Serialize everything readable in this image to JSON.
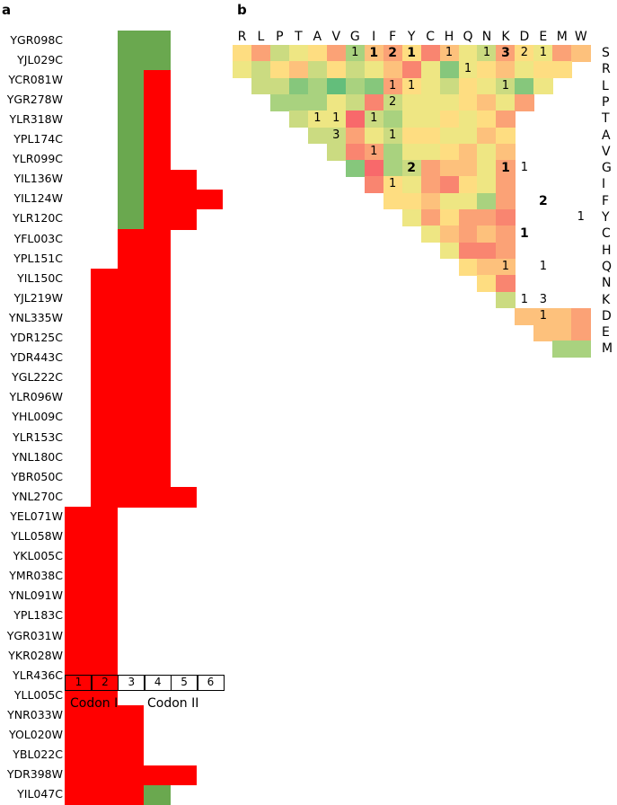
{
  "panel_a_label": "a",
  "panel_b_label": "b",
  "chart_data": [
    {
      "type": "heatmap",
      "panel": "a",
      "description_of_encoding": "each gene row has colored segments over codon positions 1-6",
      "columns": [
        "1",
        "2",
        "3",
        "4",
        "5",
        "6"
      ],
      "column_group_labels": [
        "Codon I",
        "Codon II"
      ],
      "colors": {
        "red": "#ff0000",
        "green": "#6aa84f"
      },
      "rows": [
        {
          "gene": "YGR098C",
          "segments": [
            {
              "from": 3,
              "to": 4,
              "color": "green"
            }
          ]
        },
        {
          "gene": "YJL029C",
          "segments": [
            {
              "from": 3,
              "to": 4,
              "color": "green"
            }
          ]
        },
        {
          "gene": "YCR081W",
          "segments": [
            {
              "from": 3,
              "to": 3,
              "color": "green"
            },
            {
              "from": 4,
              "to": 4,
              "color": "red"
            }
          ]
        },
        {
          "gene": "YGR278W",
          "segments": [
            {
              "from": 3,
              "to": 3,
              "color": "green"
            },
            {
              "from": 4,
              "to": 4,
              "color": "red"
            }
          ]
        },
        {
          "gene": "YLR318W",
          "segments": [
            {
              "from": 3,
              "to": 3,
              "color": "green"
            },
            {
              "from": 4,
              "to": 4,
              "color": "red"
            }
          ]
        },
        {
          "gene": "YPL174C",
          "segments": [
            {
              "from": 3,
              "to": 3,
              "color": "green"
            },
            {
              "from": 4,
              "to": 4,
              "color": "red"
            }
          ]
        },
        {
          "gene": "YLR099C",
          "segments": [
            {
              "from": 3,
              "to": 3,
              "color": "green"
            },
            {
              "from": 4,
              "to": 4,
              "color": "red"
            }
          ]
        },
        {
          "gene": "YIL136W",
          "segments": [
            {
              "from": 3,
              "to": 3,
              "color": "green"
            },
            {
              "from": 4,
              "to": 5,
              "color": "red"
            }
          ]
        },
        {
          "gene": "YIL124W",
          "segments": [
            {
              "from": 3,
              "to": 3,
              "color": "green"
            },
            {
              "from": 4,
              "to": 6,
              "color": "red"
            }
          ]
        },
        {
          "gene": "YLR120C",
          "segments": [
            {
              "from": 3,
              "to": 3,
              "color": "green"
            },
            {
              "from": 4,
              "to": 5,
              "color": "red"
            }
          ]
        },
        {
          "gene": "YFL003C",
          "segments": [
            {
              "from": 3,
              "to": 4,
              "color": "red"
            }
          ]
        },
        {
          "gene": "YPL151C",
          "segments": [
            {
              "from": 3,
              "to": 4,
              "color": "red"
            }
          ]
        },
        {
          "gene": "YIL150C",
          "segments": [
            {
              "from": 2,
              "to": 4,
              "color": "red"
            }
          ]
        },
        {
          "gene": "YJL219W",
          "segments": [
            {
              "from": 2,
              "to": 4,
              "color": "red"
            }
          ]
        },
        {
          "gene": "YNL335W",
          "segments": [
            {
              "from": 2,
              "to": 4,
              "color": "red"
            }
          ]
        },
        {
          "gene": "YDR125C",
          "segments": [
            {
              "from": 2,
              "to": 4,
              "color": "red"
            }
          ]
        },
        {
          "gene": "YDR443C",
          "segments": [
            {
              "from": 2,
              "to": 4,
              "color": "red"
            }
          ]
        },
        {
          "gene": "YGL222C",
          "segments": [
            {
              "from": 2,
              "to": 4,
              "color": "red"
            }
          ]
        },
        {
          "gene": "YLR096W",
          "segments": [
            {
              "from": 2,
              "to": 4,
              "color": "red"
            }
          ]
        },
        {
          "gene": "YHL009C",
          "segments": [
            {
              "from": 2,
              "to": 4,
              "color": "red"
            }
          ]
        },
        {
          "gene": "YLR153C",
          "segments": [
            {
              "from": 2,
              "to": 4,
              "color": "red"
            }
          ]
        },
        {
          "gene": "YNL180C",
          "segments": [
            {
              "from": 2,
              "to": 4,
              "color": "red"
            }
          ]
        },
        {
          "gene": "YBR050C",
          "segments": [
            {
              "from": 2,
              "to": 4,
              "color": "red"
            }
          ]
        },
        {
          "gene": "YNL270C",
          "segments": [
            {
              "from": 2,
              "to": 5,
              "color": "red"
            }
          ]
        },
        {
          "gene": "YEL071W",
          "segments": [
            {
              "from": 1,
              "to": 2,
              "color": "red"
            }
          ]
        },
        {
          "gene": "YLL058W",
          "segments": [
            {
              "from": 1,
              "to": 2,
              "color": "red"
            }
          ]
        },
        {
          "gene": "YKL005C",
          "segments": [
            {
              "from": 1,
              "to": 2,
              "color": "red"
            }
          ]
        },
        {
          "gene": "YMR038C",
          "segments": [
            {
              "from": 1,
              "to": 2,
              "color": "red"
            }
          ]
        },
        {
          "gene": "YNL091W",
          "segments": [
            {
              "from": 1,
              "to": 2,
              "color": "red"
            }
          ]
        },
        {
          "gene": "YPL183C",
          "segments": [
            {
              "from": 1,
              "to": 2,
              "color": "red"
            }
          ]
        },
        {
          "gene": "YGR031W",
          "segments": [
            {
              "from": 1,
              "to": 2,
              "color": "red"
            }
          ]
        },
        {
          "gene": "YKR028W",
          "segments": [
            {
              "from": 1,
              "to": 2,
              "color": "red"
            }
          ]
        },
        {
          "gene": "YLR436C",
          "segments": [
            {
              "from": 1,
              "to": 2,
              "color": "red"
            }
          ]
        },
        {
          "gene": "YLL005C",
          "segments": [
            {
              "from": 1,
              "to": 2,
              "color": "red"
            }
          ]
        },
        {
          "gene": "YNR033W",
          "segments": [
            {
              "from": 1,
              "to": 3,
              "color": "red"
            }
          ]
        },
        {
          "gene": "YOL020W",
          "segments": [
            {
              "from": 1,
              "to": 3,
              "color": "red"
            }
          ]
        },
        {
          "gene": "YBL022C",
          "segments": [
            {
              "from": 1,
              "to": 3,
              "color": "red"
            }
          ]
        },
        {
          "gene": "YDR398W",
          "segments": [
            {
              "from": 1,
              "to": 5,
              "color": "red"
            }
          ]
        },
        {
          "gene": "YIL047C",
          "segments": [
            {
              "from": 1,
              "to": 3,
              "color": "red"
            },
            {
              "from": 4,
              "to": 4,
              "color": "green"
            }
          ]
        }
      ]
    },
    {
      "type": "heatmap",
      "panel": "b",
      "amino_acids": [
        "R",
        "L",
        "P",
        "T",
        "A",
        "V",
        "G",
        "I",
        "F",
        "Y",
        "C",
        "H",
        "Q",
        "N",
        "K",
        "D",
        "E",
        "M",
        "W"
      ],
      "row_amino_acids": [
        "S",
        "R",
        "L",
        "P",
        "T",
        "A",
        "V",
        "G",
        "I",
        "F",
        "Y",
        "C",
        "H",
        "Q",
        "N",
        "K",
        "D",
        "E",
        "M"
      ],
      "palette": {
        "1": "#63be7b",
        "2": "#86c77c",
        "3": "#a9d27f",
        "4": "#cbdb81",
        "5": "#eee683",
        "6": "#fedd81",
        "7": "#fdc17c",
        "8": "#fba276",
        "9": "#f98570",
        "10": "#f8696b"
      },
      "cell_levels": [
        [
          6,
          8,
          4,
          5,
          6,
          8,
          3,
          7,
          8,
          6,
          9,
          7,
          5,
          4,
          8,
          6,
          5,
          8,
          7
        ],
        [
          5,
          4,
          6,
          7,
          4,
          6,
          4,
          5,
          7,
          9,
          5,
          2,
          5,
          6,
          7,
          5,
          6,
          6
        ],
        [
          4,
          4,
          2,
          3,
          1,
          3,
          2,
          8,
          6,
          5,
          4,
          6,
          5,
          4,
          2,
          5
        ],
        [
          3,
          3,
          3,
          5,
          4,
          9,
          4,
          5,
          5,
          5,
          6,
          7,
          5,
          8
        ],
        [
          4,
          5,
          5,
          10,
          4,
          3,
          5,
          5,
          6,
          5,
          6,
          8
        ],
        [
          4,
          4,
          8,
          5,
          4,
          6,
          6,
          5,
          5,
          7,
          6
        ],
        [
          4,
          9,
          8,
          3,
          5,
          5,
          6,
          7,
          5,
          7
        ],
        [
          2,
          10,
          3,
          4,
          8,
          7,
          7,
          5,
          8
        ],
        [
          9,
          6,
          5,
          8,
          9,
          6,
          5,
          8
        ],
        [
          6,
          6,
          7,
          5,
          5,
          3,
          8
        ],
        [
          5,
          8,
          6,
          8,
          8,
          9
        ],
        [
          5,
          7,
          8,
          7,
          8
        ],
        [
          5,
          9,
          9,
          8
        ],
        [
          6,
          7,
          7
        ],
        [
          6,
          9
        ],
        [
          4
        ]
      ],
      "counts": [
        {
          "row": "S",
          "col": "G",
          "value": "1",
          "bold": false
        },
        {
          "row": "S",
          "col": "I",
          "value": "1",
          "bold": true
        },
        {
          "row": "S",
          "col": "F",
          "value": "2",
          "bold": true
        },
        {
          "row": "S",
          "col": "Y",
          "value": "1",
          "bold": true
        },
        {
          "row": "S",
          "col": "H",
          "value": "1",
          "bold": false
        },
        {
          "row": "S",
          "col": "N",
          "value": "1",
          "bold": false
        },
        {
          "row": "S",
          "col": "K",
          "value": "3",
          "bold": true
        },
        {
          "row": "S",
          "col": "D",
          "value": "2",
          "bold": false
        },
        {
          "row": "S",
          "col": "E",
          "value": "1",
          "bold": false
        },
        {
          "row": "R",
          "col": "Q",
          "value": "1",
          "bold": false
        },
        {
          "row": "L",
          "col": "F",
          "value": "1",
          "bold": false
        },
        {
          "row": "L",
          "col": "Y",
          "value": "1",
          "bold": false
        },
        {
          "row": "L",
          "col": "K",
          "value": "1",
          "bold": false
        },
        {
          "row": "P",
          "col": "F",
          "value": "2",
          "bold": false
        },
        {
          "row": "T",
          "col": "V",
          "value": "1",
          "bold": false
        },
        {
          "row": "T",
          "col": "A",
          "value": "1",
          "bold": false
        },
        {
          "row": "T",
          "col": "I",
          "value": "1",
          "bold": false
        },
        {
          "row": "A",
          "col": "V",
          "value": "3",
          "bold": false
        },
        {
          "row": "A",
          "col": "F",
          "value": "1",
          "bold": false
        },
        {
          "row": "V",
          "col": "I",
          "value": "1",
          "bold": false
        },
        {
          "row": "G",
          "col": "Y",
          "value": "2",
          "bold": true
        },
        {
          "row": "G",
          "col": "K",
          "value": "1",
          "bold": true
        },
        {
          "row": "G",
          "col": "D",
          "value": "1",
          "bold": false
        },
        {
          "row": "I",
          "col": "F",
          "value": "1",
          "bold": false
        },
        {
          "row": "F",
          "col": "E",
          "value": "2",
          "bold": true
        },
        {
          "row": "Y",
          "col": "W",
          "value": "1",
          "bold": false
        },
        {
          "row": "C",
          "col": "D",
          "value": "1",
          "bold": true
        },
        {
          "row": "Q",
          "col": "K",
          "value": "1",
          "bold": false
        },
        {
          "row": "Q",
          "col": "E",
          "value": "1",
          "bold": false
        },
        {
          "row": "K",
          "col": "D",
          "value": "1",
          "bold": false
        },
        {
          "row": "K",
          "col": "E",
          "value": "3",
          "bold": false
        },
        {
          "row": "D",
          "col": "E",
          "value": "1",
          "bold": false
        }
      ]
    }
  ]
}
